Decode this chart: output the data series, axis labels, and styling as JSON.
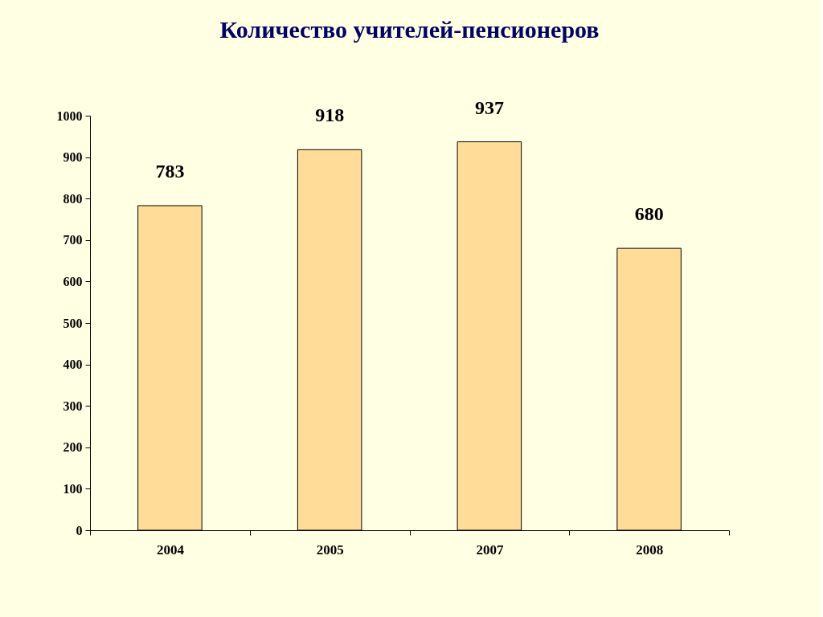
{
  "chart_data": {
    "type": "bar",
    "title": "Количество учителей-пенсионеров",
    "categories": [
      "2004",
      "2005",
      "2007",
      "2008"
    ],
    "values": [
      783,
      918,
      937,
      680
    ],
    "color": "#ffdd99",
    "ylim": [
      0,
      1000
    ],
    "yticks": [
      0,
      100,
      200,
      300,
      400,
      500,
      600,
      700,
      800,
      900,
      1000
    ],
    "grid": false,
    "data_labels": true
  }
}
